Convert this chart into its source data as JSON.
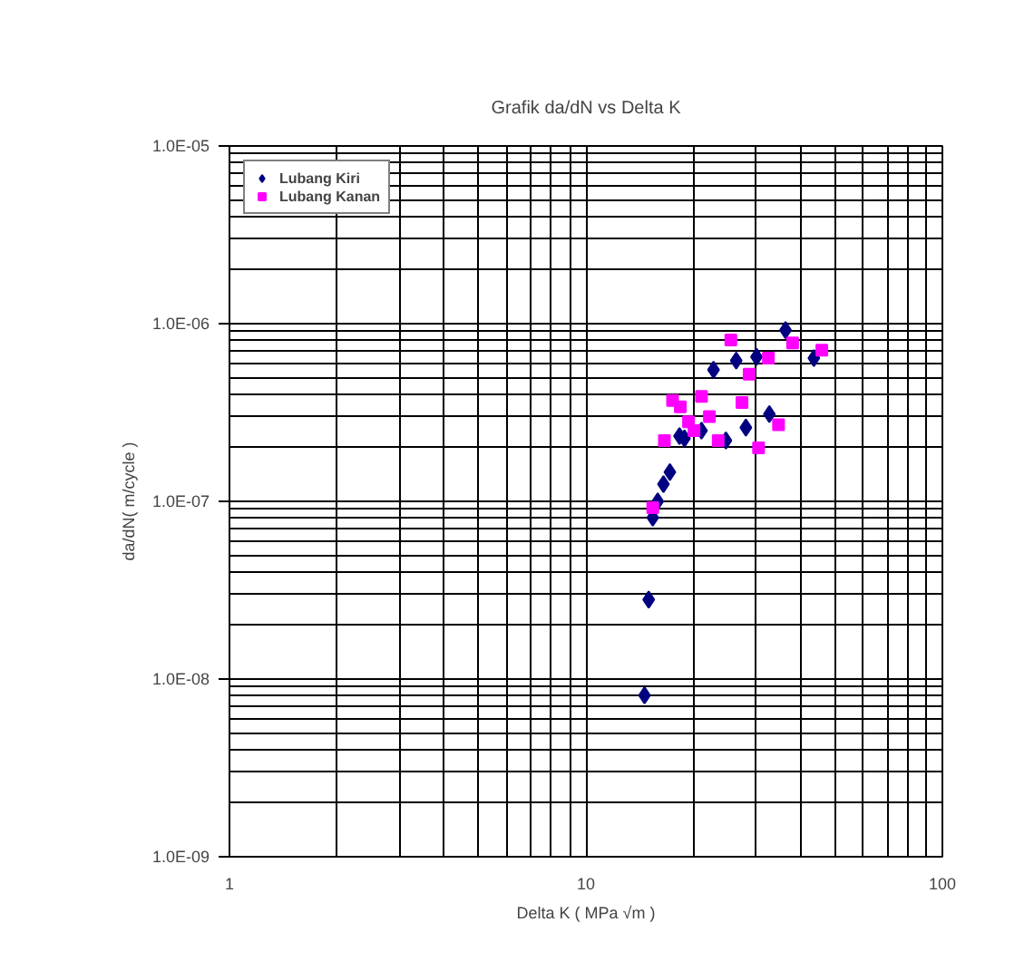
{
  "chart_data": {
    "type": "scatter",
    "title": "Grafik da/dN vs Delta K",
    "xlabel": "Delta K ( MPa √m )",
    "ylabel": "da/dN( m/cycle )",
    "log": "xy",
    "xlim": [
      1,
      100
    ],
    "ylim": [
      1e-09,
      1e-05
    ],
    "xticks": [
      1,
      10,
      100
    ],
    "yticks": [
      {
        "value": 1e-09,
        "label": "1.0E-09"
      },
      {
        "value": 1e-08,
        "label": "1.0E-08"
      },
      {
        "value": 1e-07,
        "label": "1.0E-07"
      },
      {
        "value": 1e-06,
        "label": "1.0E-06"
      },
      {
        "value": 1e-05,
        "label": "1.0E-05"
      }
    ],
    "grid": true,
    "legend": "top left",
    "series": [
      {
        "name": "Lubang Kiri",
        "color": "#000080",
        "marker": "diamond",
        "x": [
          36.3,
          26.4,
          30.1,
          43.6,
          22.8,
          32.7,
          28.1,
          21.1,
          18.3,
          18.9,
          24.7,
          17.2,
          16.5,
          15.9,
          15.4,
          15.0,
          14.6
        ],
        "values": [
          9.2e-07,
          6.2e-07,
          6.5e-07,
          6.4e-07,
          5.5e-07,
          3.1e-07,
          2.6e-07,
          2.5e-07,
          2.33e-07,
          2.26e-07,
          2.2e-07,
          1.46e-07,
          1.25e-07,
          1e-07,
          8.1e-08,
          2.8e-08,
          8.1e-09
        ]
      },
      {
        "name": "Lubang Kanan",
        "color": "#ff00ff",
        "marker": "square",
        "x": [
          25.5,
          38.0,
          45.9,
          32.5,
          28.7,
          17.5,
          18.4,
          21.1,
          27.4,
          22.2,
          19.4,
          20.1,
          34.7,
          16.6,
          23.5,
          30.5,
          15.4
        ],
        "values": [
          8.1e-07,
          7.8e-07,
          7.1e-07,
          6.4e-07,
          5.2e-07,
          3.7e-07,
          3.4e-07,
          3.9e-07,
          3.6e-07,
          3e-07,
          2.8e-07,
          2.5e-07,
          2.7e-07,
          2.2e-07,
          2.2e-07,
          2e-07,
          9.2e-08
        ]
      }
    ]
  }
}
